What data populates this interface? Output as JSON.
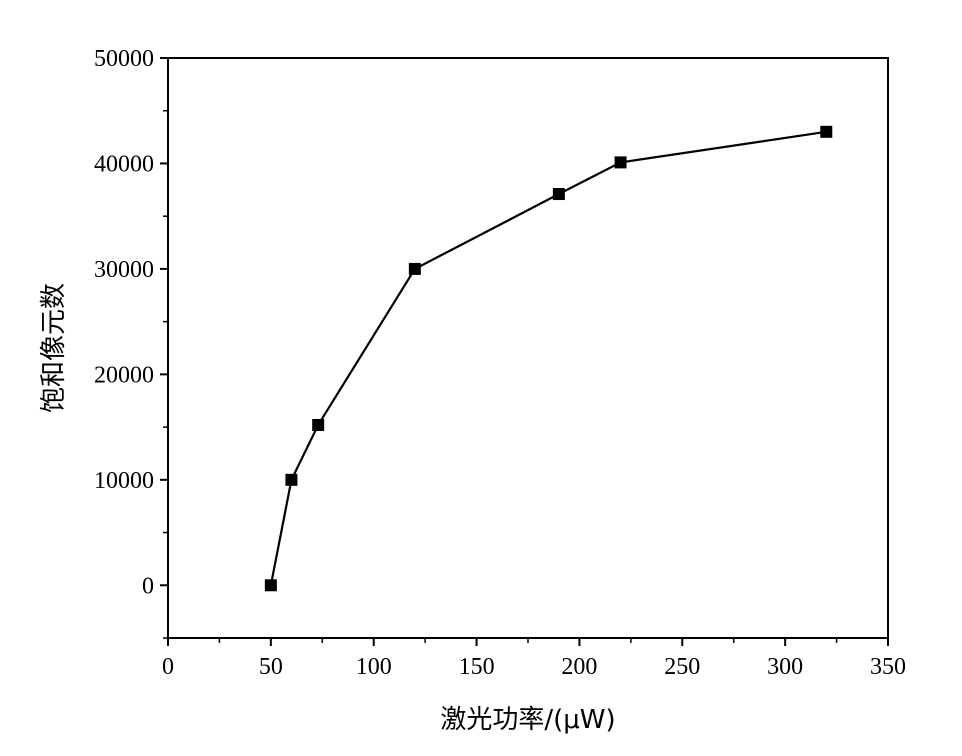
{
  "chart_data": {
    "type": "line",
    "title": "",
    "xlabel": "激光功率/(μW)",
    "ylabel": "饱和像元数",
    "xlim": [
      0,
      350
    ],
    "ylim": [
      -5000,
      50000
    ],
    "x_ticks": [
      0,
      50,
      100,
      150,
      200,
      250,
      300,
      350
    ],
    "y_ticks": [
      0,
      10000,
      20000,
      30000,
      40000,
      50000
    ],
    "x_tick_labels": [
      "0",
      "50",
      "100",
      "150",
      "200",
      "250",
      "300",
      "350"
    ],
    "y_tick_labels": [
      "0",
      "10000",
      "20000",
      "30000",
      "40000",
      "50000"
    ],
    "grid": false,
    "legend": "none",
    "series": [
      {
        "color": "#000000",
        "marker": "square",
        "x": [
          50,
          60,
          73,
          120,
          190,
          220,
          320
        ],
        "y": [
          0,
          10000,
          15200,
          30000,
          37100,
          40100,
          43000
        ]
      }
    ]
  }
}
